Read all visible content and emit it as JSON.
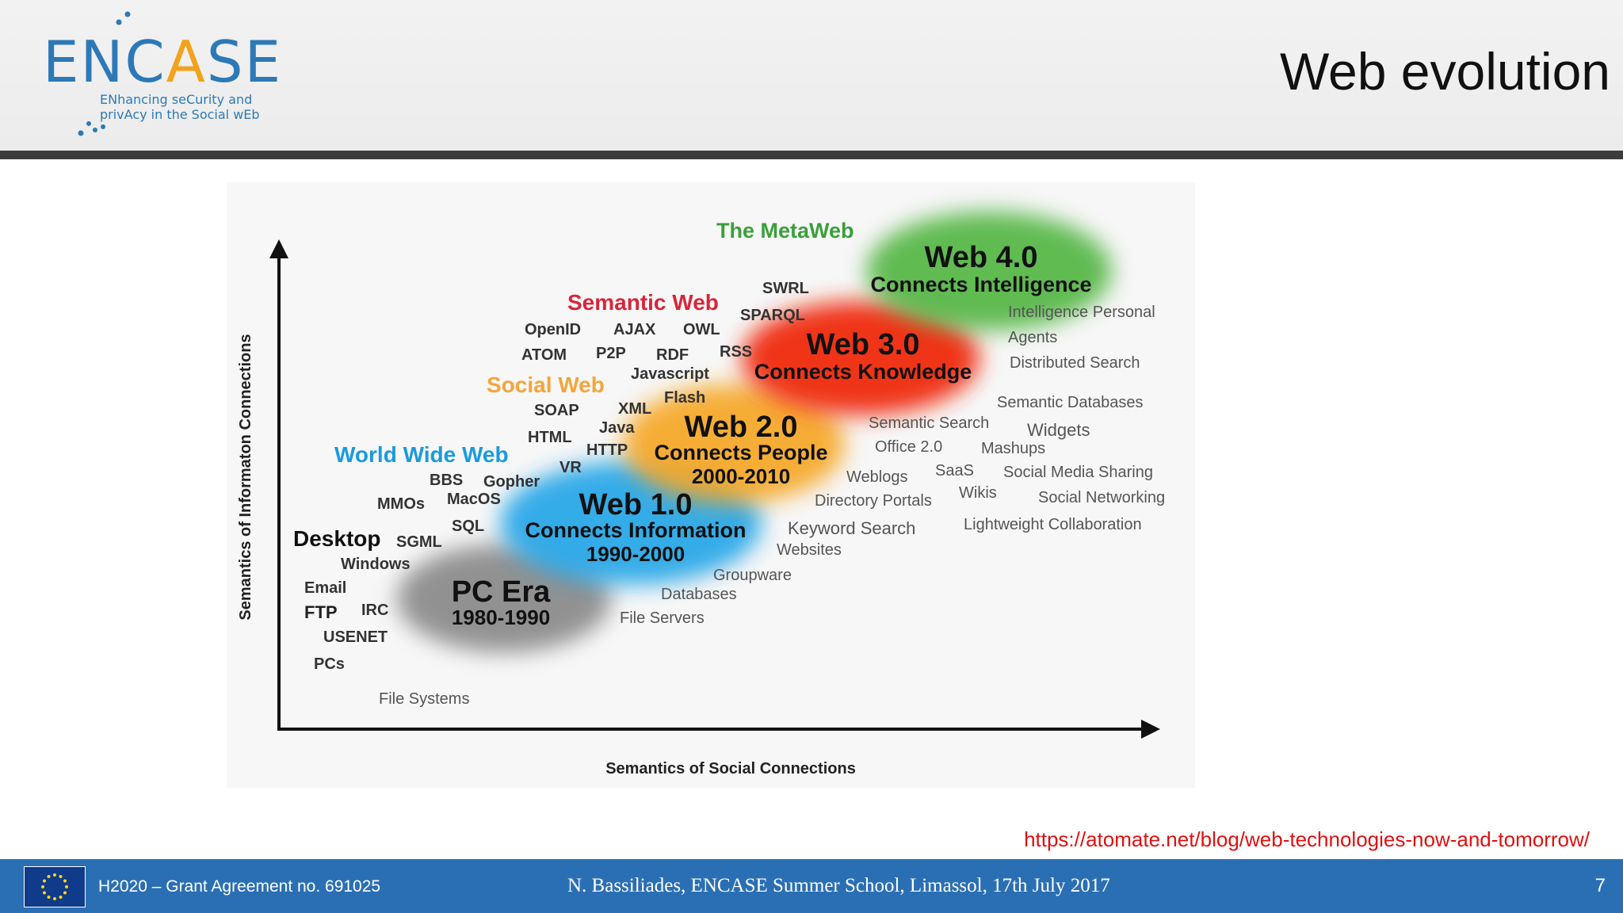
{
  "header": {
    "logo_text": "ENCASE",
    "logo_sub_line1": "ENhancing seCurity and",
    "logo_sub_line2": "privAcy in the Social wEb",
    "title": "Web evolution"
  },
  "diagram": {
    "y_axis_label": "Semantics of Informaton Connections",
    "x_axis_label": "Semantics of Social Connections",
    "eras": {
      "pc": {
        "title": "PC Era",
        "years": "1980-1990"
      },
      "web1": {
        "title": "Web 1.0",
        "subtitle": "Connects Information",
        "years": "1990-2000"
      },
      "web2": {
        "title": "Web 2.0",
        "subtitle": "Connects People",
        "years": "2000-2010"
      },
      "web3": {
        "title": "Web 3.0",
        "subtitle": "Connects Knowledge"
      },
      "web4": {
        "title": "Web 4.0",
        "subtitle": "Connects Intelligence"
      }
    },
    "categories": {
      "metaweb": "The MetaWeb",
      "semantic_web": "Semantic Web",
      "social_web": "Social Web",
      "www": "World Wide Web",
      "desktop": "Desktop"
    },
    "colors": {
      "pc": "#8c8c8c",
      "web1": "#2aa8e8",
      "web2": "#f6a623",
      "web3": "#f02a10",
      "web4": "#58b84a",
      "metaweb": "#3aa03a",
      "semantic_web": "#d8253a",
      "social_web": "#f5a53a",
      "www": "#1a9ae0"
    },
    "terms": {
      "swrl": "SWRL",
      "sparql": "SPARQL",
      "openid": "OpenID",
      "ajax": "AJAX",
      "owl": "OWL",
      "atom": "ATOM",
      "p2p": "P2P",
      "rdf": "RDF",
      "rss": "RSS",
      "javascript": "Javascript",
      "flash": "Flash",
      "soap": "SOAP",
      "xml": "XML",
      "html": "HTML",
      "java": "Java",
      "http": "HTTP",
      "vr": "VR",
      "bbs": "BBS",
      "gopher": "Gopher",
      "mmos": "MMOs",
      "macos": "MacOS",
      "sql": "SQL",
      "sgml": "SGML",
      "windows": "Windows",
      "email": "Email",
      "irc": "IRC",
      "ftp": "FTP",
      "usenet": "USENET",
      "pcs": "PCs",
      "file_systems": "File Systems",
      "file_servers": "File Servers",
      "databases": "Databases",
      "groupware": "Groupware",
      "websites": "Websites",
      "keyword_search": "Keyword Search",
      "directory_portals": "Directory Portals",
      "weblogs": "Weblogs",
      "office20": "Office 2.0",
      "semantic_search": "Semantic Search",
      "saas": "SaaS",
      "wikis": "Wikis",
      "mashups": "Mashups",
      "widgets": "Widgets",
      "semantic_databases": "Semantic Databases",
      "distributed_search": "Distributed Search",
      "intelligence_personal": "Intelligence Personal",
      "agents": "Agents",
      "social_media_sharing": "Social Media Sharing",
      "social_networking": "Social Networking",
      "lightweight_collaboration": "Lightweight Collaboration"
    }
  },
  "source_url": "https://atomate.net/blog/web-technologies-now-and-tomorrow/",
  "footer": {
    "grant": "H2020 – Grant Agreement no. 691025",
    "event": "N. Bassiliades, ENCASE Summer School, Limassol, 17th July 2017",
    "page_number": "7"
  }
}
